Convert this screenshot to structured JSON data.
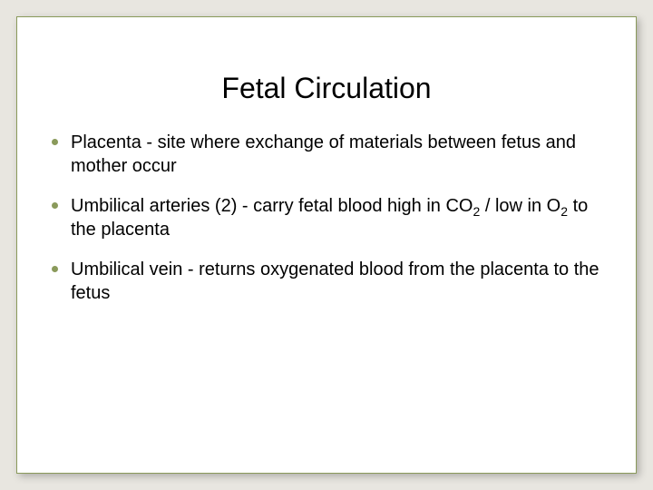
{
  "slide": {
    "title": "Fetal Circulation",
    "background_color": "#e8e6e0",
    "card_background": "#ffffff",
    "border_color": "#8a9a5b",
    "bullet_color": "#8a9a5b",
    "text_color": "#000000",
    "title_fontsize": 32,
    "body_fontsize": 20,
    "bullets": [
      {
        "prefix": "Placenta - site where exchange of materials between fetus and mother occur",
        "has_sub": false
      },
      {
        "prefix": "Umbilical arteries (2) - carry fetal blood high in CO",
        "sub1": "2",
        "mid": " / low in O",
        "sub2": "2",
        "suffix": " to the placenta",
        "has_sub": true
      },
      {
        "prefix": "Umbilical vein - returns oxygenated blood from the placenta to the fetus",
        "has_sub": false
      }
    ]
  }
}
